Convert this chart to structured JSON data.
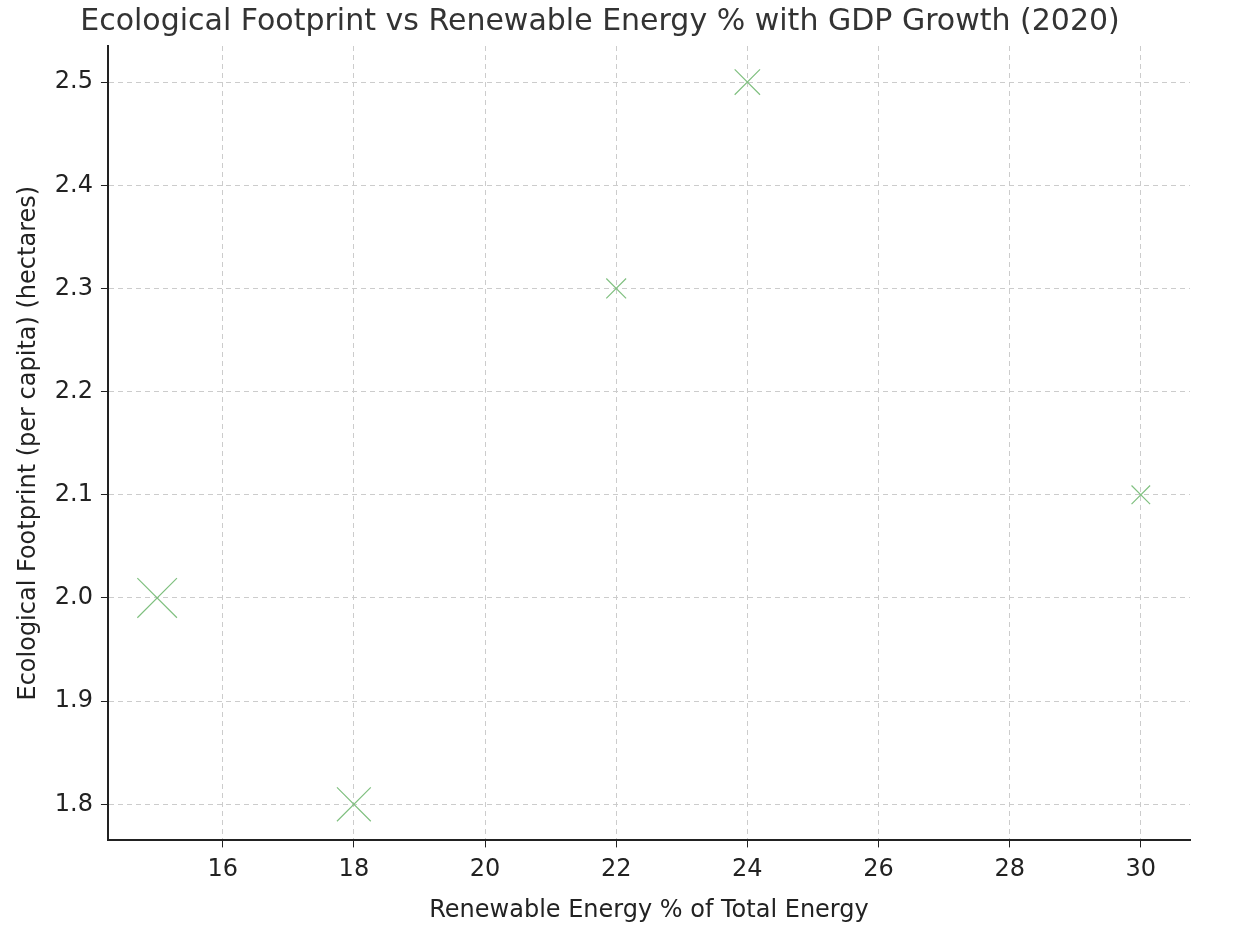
{
  "chart_data": {
    "type": "bubble",
    "title": "Ecological Footprint vs Renewable Energy % with GDP Growth (2020)",
    "xlabel": "Renewable Energy % of Total Energy",
    "ylabel": "Ecological Footprint (per capita) (hectares)",
    "x": [
      15,
      18,
      22,
      24,
      30
    ],
    "values": [
      2.0,
      1.8,
      2.3,
      2.5,
      2.1
    ],
    "sizes": [
      1,
      0.73,
      0.25,
      0.41,
      0.22
    ],
    "color": "#80c080",
    "marker": "cross",
    "xlim": [
      14.25,
      30.75
    ],
    "xticks": [
      16,
      18,
      20,
      22,
      24,
      26,
      28,
      30
    ],
    "ylim": [
      1.765,
      2.535
    ],
    "yticks": [
      1.8,
      1.9,
      {
        "value": 2,
        "label": "2.0"
      },
      2.1,
      2.2,
      2.3,
      2.4,
      2.5
    ],
    "grid": true,
    "legend": false
  }
}
